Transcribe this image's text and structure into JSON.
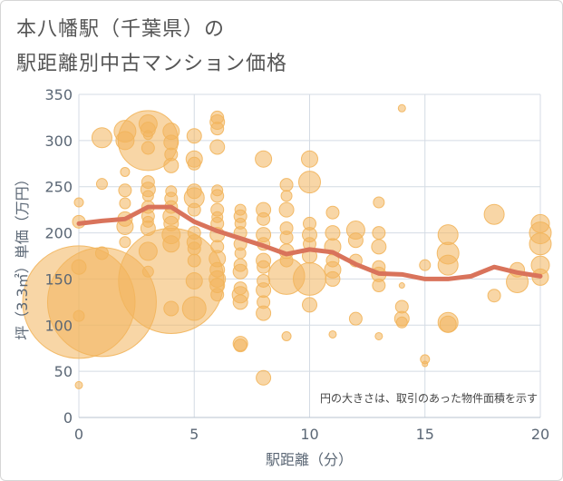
{
  "title_line1": "本八幡駅（千葉県）の",
  "title_line2": "駅距離別中古マンション価格",
  "chart_data": {
    "type": "scatter",
    "xlabel": "駅距離（分）",
    "ylabel": "坪（3.3㎡）単価（万円）",
    "xlim": [
      0,
      20
    ],
    "ylim": [
      0,
      350
    ],
    "xticks": [
      "0",
      "5",
      "10",
      "15",
      "20"
    ],
    "yticks": [
      "0",
      "50",
      "100",
      "150",
      "200",
      "250",
      "300",
      "350"
    ],
    "note": "円の大きさは、取引のあった物件面積を示す",
    "grid": true,
    "colors": {
      "bubble": "#f2b55c",
      "line": "#d9735b"
    },
    "line": {
      "x": [
        0,
        1,
        2,
        3,
        4,
        5,
        6,
        7,
        8,
        9,
        10,
        11,
        12,
        13,
        14,
        15,
        16,
        17,
        18,
        19,
        20
      ],
      "y": [
        210,
        213,
        215,
        228,
        228,
        212,
        202,
        194,
        186,
        177,
        182,
        179,
        166,
        156,
        155,
        150,
        150,
        153,
        163,
        157,
        153
      ]
    },
    "points": [
      {
        "x": 0,
        "y": 125,
        "s": 62
      },
      {
        "x": 0,
        "y": 163,
        "s": 8
      },
      {
        "x": 0,
        "y": 212,
        "s": 7
      },
      {
        "x": 0,
        "y": 233,
        "s": 5
      },
      {
        "x": 0,
        "y": 35,
        "s": 4
      },
      {
        "x": 0,
        "y": 110,
        "s": 6
      },
      {
        "x": 1,
        "y": 125,
        "s": 60
      },
      {
        "x": 1,
        "y": 303,
        "s": 11
      },
      {
        "x": 1,
        "y": 253,
        "s": 6
      },
      {
        "x": 1,
        "y": 178,
        "s": 7
      },
      {
        "x": 2,
        "y": 310,
        "s": 12
      },
      {
        "x": 2,
        "y": 300,
        "s": 10
      },
      {
        "x": 2,
        "y": 266,
        "s": 5
      },
      {
        "x": 2,
        "y": 246,
        "s": 7
      },
      {
        "x": 2,
        "y": 232,
        "s": 6
      },
      {
        "x": 2,
        "y": 215,
        "s": 8
      },
      {
        "x": 2,
        "y": 207,
        "s": 9
      },
      {
        "x": 2,
        "y": 190,
        "s": 6
      },
      {
        "x": 3,
        "y": 300,
        "s": 33
      },
      {
        "x": 3,
        "y": 318,
        "s": 10
      },
      {
        "x": 3,
        "y": 312,
        "s": 8
      },
      {
        "x": 3,
        "y": 306,
        "s": 5
      },
      {
        "x": 3,
        "y": 292,
        "s": 7
      },
      {
        "x": 3,
        "y": 255,
        "s": 7
      },
      {
        "x": 3,
        "y": 247,
        "s": 8
      },
      {
        "x": 3,
        "y": 240,
        "s": 6
      },
      {
        "x": 3,
        "y": 228,
        "s": 7
      },
      {
        "x": 3,
        "y": 218,
        "s": 7
      },
      {
        "x": 3,
        "y": 212,
        "s": 6
      },
      {
        "x": 3,
        "y": 205,
        "s": 8
      },
      {
        "x": 3,
        "y": 180,
        "s": 10
      },
      {
        "x": 3,
        "y": 158,
        "s": 6
      },
      {
        "x": 4,
        "y": 148,
        "s": 58
      },
      {
        "x": 4,
        "y": 310,
        "s": 9
      },
      {
        "x": 4,
        "y": 298,
        "s": 8
      },
      {
        "x": 4,
        "y": 285,
        "s": 7
      },
      {
        "x": 4,
        "y": 273,
        "s": 8
      },
      {
        "x": 4,
        "y": 245,
        "s": 6
      },
      {
        "x": 4,
        "y": 237,
        "s": 7
      },
      {
        "x": 4,
        "y": 228,
        "s": 7
      },
      {
        "x": 4,
        "y": 218,
        "s": 9
      },
      {
        "x": 4,
        "y": 210,
        "s": 8
      },
      {
        "x": 4,
        "y": 198,
        "s": 10
      },
      {
        "x": 4,
        "y": 188,
        "s": 9
      },
      {
        "x": 4,
        "y": 118,
        "s": 8
      },
      {
        "x": 5,
        "y": 305,
        "s": 8
      },
      {
        "x": 5,
        "y": 280,
        "s": 9
      },
      {
        "x": 5,
        "y": 275,
        "s": 7
      },
      {
        "x": 5,
        "y": 245,
        "s": 8
      },
      {
        "x": 5,
        "y": 238,
        "s": 11
      },
      {
        "x": 5,
        "y": 225,
        "s": 7
      },
      {
        "x": 5,
        "y": 200,
        "s": 7
      },
      {
        "x": 5,
        "y": 190,
        "s": 8
      },
      {
        "x": 5,
        "y": 183,
        "s": 7
      },
      {
        "x": 5,
        "y": 170,
        "s": 7
      },
      {
        "x": 5,
        "y": 148,
        "s": 9
      },
      {
        "x": 5,
        "y": 118,
        "s": 13
      },
      {
        "x": 6,
        "y": 325,
        "s": 7
      },
      {
        "x": 6,
        "y": 320,
        "s": 8
      },
      {
        "x": 6,
        "y": 313,
        "s": 7
      },
      {
        "x": 6,
        "y": 293,
        "s": 8
      },
      {
        "x": 6,
        "y": 246,
        "s": 6
      },
      {
        "x": 6,
        "y": 240,
        "s": 7
      },
      {
        "x": 6,
        "y": 225,
        "s": 7
      },
      {
        "x": 6,
        "y": 217,
        "s": 6
      },
      {
        "x": 6,
        "y": 210,
        "s": 7
      },
      {
        "x": 6,
        "y": 198,
        "s": 8
      },
      {
        "x": 6,
        "y": 185,
        "s": 7
      },
      {
        "x": 6,
        "y": 172,
        "s": 9
      },
      {
        "x": 6,
        "y": 160,
        "s": 8
      },
      {
        "x": 6,
        "y": 150,
        "s": 9
      },
      {
        "x": 6,
        "y": 143,
        "s": 8
      },
      {
        "x": 6,
        "y": 133,
        "s": 7
      },
      {
        "x": 7,
        "y": 225,
        "s": 6
      },
      {
        "x": 7,
        "y": 218,
        "s": 7
      },
      {
        "x": 7,
        "y": 210,
        "s": 6
      },
      {
        "x": 7,
        "y": 200,
        "s": 7
      },
      {
        "x": 7,
        "y": 188,
        "s": 7
      },
      {
        "x": 7,
        "y": 178,
        "s": 6
      },
      {
        "x": 7,
        "y": 165,
        "s": 7
      },
      {
        "x": 7,
        "y": 158,
        "s": 8
      },
      {
        "x": 7,
        "y": 140,
        "s": 7
      },
      {
        "x": 7,
        "y": 133,
        "s": 9
      },
      {
        "x": 7,
        "y": 125,
        "s": 8
      },
      {
        "x": 7,
        "y": 80,
        "s": 8
      },
      {
        "x": 7,
        "y": 78,
        "s": 7
      },
      {
        "x": 8,
        "y": 280,
        "s": 9
      },
      {
        "x": 8,
        "y": 225,
        "s": 8
      },
      {
        "x": 8,
        "y": 215,
        "s": 7
      },
      {
        "x": 8,
        "y": 198,
        "s": 8
      },
      {
        "x": 8,
        "y": 188,
        "s": 7
      },
      {
        "x": 8,
        "y": 170,
        "s": 8
      },
      {
        "x": 8,
        "y": 163,
        "s": 7
      },
      {
        "x": 8,
        "y": 148,
        "s": 7
      },
      {
        "x": 8,
        "y": 138,
        "s": 8
      },
      {
        "x": 8,
        "y": 125,
        "s": 7
      },
      {
        "x": 8,
        "y": 113,
        "s": 8
      },
      {
        "x": 8,
        "y": 43,
        "s": 8
      },
      {
        "x": 9,
        "y": 252,
        "s": 7
      },
      {
        "x": 9,
        "y": 240,
        "s": 6
      },
      {
        "x": 9,
        "y": 225,
        "s": 8
      },
      {
        "x": 9,
        "y": 205,
        "s": 7
      },
      {
        "x": 9,
        "y": 195,
        "s": 7
      },
      {
        "x": 9,
        "y": 180,
        "s": 8
      },
      {
        "x": 9,
        "y": 170,
        "s": 7
      },
      {
        "x": 9,
        "y": 153,
        "s": 20
      },
      {
        "x": 9,
        "y": 88,
        "s": 5
      },
      {
        "x": 10,
        "y": 280,
        "s": 9
      },
      {
        "x": 10,
        "y": 255,
        "s": 12
      },
      {
        "x": 10,
        "y": 210,
        "s": 7
      },
      {
        "x": 10,
        "y": 198,
        "s": 8
      },
      {
        "x": 10,
        "y": 188,
        "s": 7
      },
      {
        "x": 10,
        "y": 175,
        "s": 8
      },
      {
        "x": 10,
        "y": 150,
        "s": 18
      },
      {
        "x": 10,
        "y": 122,
        "s": 8
      },
      {
        "x": 11,
        "y": 222,
        "s": 7
      },
      {
        "x": 11,
        "y": 200,
        "s": 8
      },
      {
        "x": 11,
        "y": 185,
        "s": 9
      },
      {
        "x": 11,
        "y": 170,
        "s": 7
      },
      {
        "x": 11,
        "y": 160,
        "s": 9
      },
      {
        "x": 11,
        "y": 150,
        "s": 8
      },
      {
        "x": 11,
        "y": 90,
        "s": 4
      },
      {
        "x": 12,
        "y": 203,
        "s": 10
      },
      {
        "x": 12,
        "y": 192,
        "s": 8
      },
      {
        "x": 12,
        "y": 170,
        "s": 7
      },
      {
        "x": 12,
        "y": 107,
        "s": 7
      },
      {
        "x": 13,
        "y": 233,
        "s": 6
      },
      {
        "x": 13,
        "y": 200,
        "s": 7
      },
      {
        "x": 13,
        "y": 185,
        "s": 8
      },
      {
        "x": 13,
        "y": 163,
        "s": 7
      },
      {
        "x": 13,
        "y": 155,
        "s": 8
      },
      {
        "x": 13,
        "y": 143,
        "s": 7
      },
      {
        "x": 13,
        "y": 88,
        "s": 4
      },
      {
        "x": 14,
        "y": 335,
        "s": 4
      },
      {
        "x": 14,
        "y": 143,
        "s": 3
      },
      {
        "x": 14,
        "y": 120,
        "s": 7
      },
      {
        "x": 14,
        "y": 107,
        "s": 8
      },
      {
        "x": 14,
        "y": 103,
        "s": 6
      },
      {
        "x": 15,
        "y": 165,
        "s": 6
      },
      {
        "x": 15,
        "y": 63,
        "s": 5
      },
      {
        "x": 15,
        "y": 58,
        "s": 3
      },
      {
        "x": 16,
        "y": 198,
        "s": 11
      },
      {
        "x": 16,
        "y": 178,
        "s": 12
      },
      {
        "x": 16,
        "y": 165,
        "s": 11
      },
      {
        "x": 16,
        "y": 103,
        "s": 11
      },
      {
        "x": 16,
        "y": 101,
        "s": 9
      },
      {
        "x": 18,
        "y": 220,
        "s": 11
      },
      {
        "x": 18,
        "y": 132,
        "s": 7
      },
      {
        "x": 19,
        "y": 160,
        "s": 8
      },
      {
        "x": 19,
        "y": 147,
        "s": 12
      },
      {
        "x": 20,
        "y": 210,
        "s": 10
      },
      {
        "x": 20,
        "y": 200,
        "s": 12
      },
      {
        "x": 20,
        "y": 188,
        "s": 12
      },
      {
        "x": 20,
        "y": 165,
        "s": 10
      },
      {
        "x": 20,
        "y": 152,
        "s": 9
      }
    ]
  }
}
